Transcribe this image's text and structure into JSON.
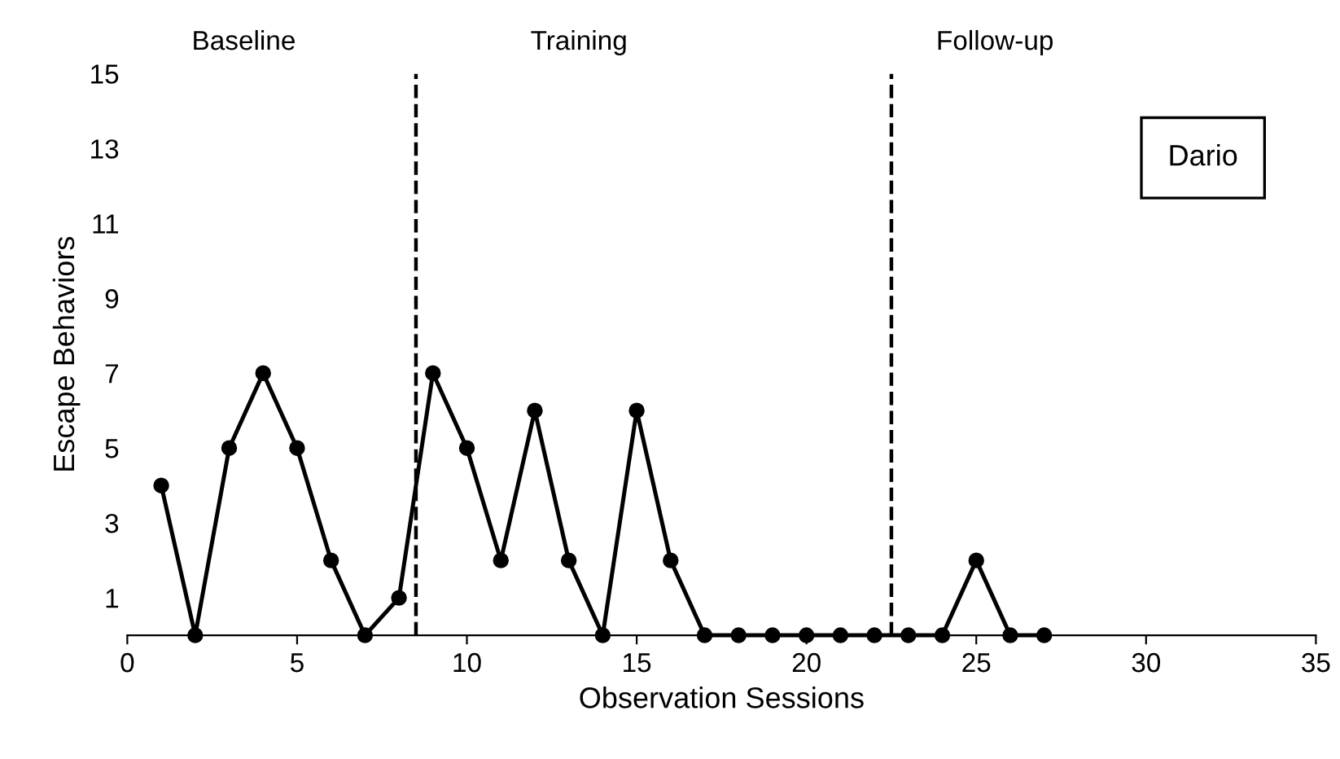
{
  "chart_data": {
    "type": "line",
    "xlabel": "Observation Sessions",
    "ylabel": "Escape Behaviors",
    "x": [
      1,
      2,
      3,
      4,
      5,
      6,
      7,
      8,
      9,
      10,
      11,
      12,
      13,
      14,
      15,
      16,
      17,
      18,
      19,
      20,
      21,
      22,
      23,
      24,
      25,
      26,
      27
    ],
    "series": [
      {
        "color": "#000000",
        "values": [
          4,
          0,
          5,
          7,
          5,
          2,
          0,
          1,
          7,
          5,
          2,
          6,
          2,
          0,
          6,
          2,
          0,
          0,
          0,
          0,
          0,
          0,
          0,
          0,
          2,
          0,
          0
        ]
      }
    ],
    "xlim": [
      0,
      35
    ],
    "xticks": [
      0,
      5,
      10,
      15,
      20,
      25,
      30,
      35
    ],
    "ylim": [
      0,
      15
    ],
    "yticks": [
      1,
      3,
      5,
      7,
      9,
      11,
      13,
      15
    ],
    "marker": "circle",
    "line_style": "solid",
    "grid": false,
    "legend": false,
    "ref_lines": [
      {
        "axis": "x",
        "value": 8.5,
        "line_style": "dashed",
        "color": "#000000"
      },
      {
        "axis": "x",
        "value": 22.5,
        "line_style": "dashed",
        "color": "#000000"
      }
    ],
    "annotations": [
      "Baseline",
      "Training",
      "Follow-up",
      "Dario"
    ]
  }
}
